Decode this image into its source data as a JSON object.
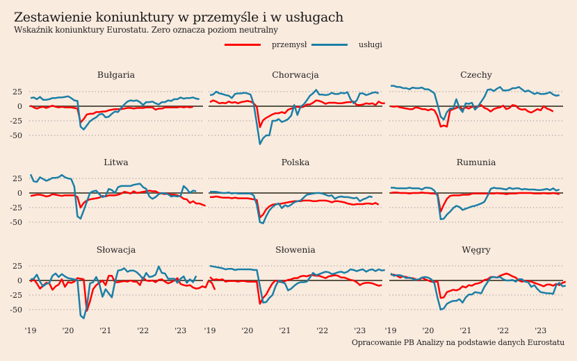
{
  "title": "Zestawienie koniunktury w przemyśle i w usługach",
  "subtitle": "Wskaźnik koniunktury Eurostatu. Zero oznacza poziom neutralny",
  "footer": "Opracowanie PB Analizy na podstawie danych Eurostatu",
  "legend": [
    {
      "label": "przemysł",
      "color": "#ff0000"
    },
    {
      "label": "usługi",
      "color": "#1a7fa6"
    }
  ],
  "colors": {
    "background": "#faebdf",
    "zero_line": "#5a5545",
    "grid": "#888888",
    "przemysl": "#ff0000",
    "uslugi": "#1a7fa6"
  },
  "chart_data": {
    "type": "line",
    "layout": "small-multiples 3x3",
    "x_start": "2019-01",
    "x_frequency": "monthly",
    "xticks": [
      "'19",
      "'20",
      "'21",
      "'22",
      "'23"
    ],
    "yticks": [
      25,
      0,
      -25,
      -50
    ],
    "ylim": [
      -55,
      30
    ],
    "grid": true,
    "legend_position": "top-center",
    "series_names": [
      "przemysł",
      "usługi"
    ],
    "panels": [
      {
        "title": "Bułgaria",
        "przemysl": [
          1,
          -2,
          -4,
          -2,
          -1,
          -3,
          -1,
          1,
          -1,
          -2,
          -1,
          -2,
          -2,
          -2,
          -3,
          -4,
          -28,
          -22,
          -14,
          -13,
          -13,
          -10,
          -10,
          -9,
          -9,
          -7,
          -6,
          -5,
          -5,
          -5,
          -4,
          -3,
          -3,
          -4,
          -3,
          -3,
          -3,
          -2,
          -2,
          -2,
          -6,
          -4,
          -4,
          -2,
          -2,
          -2,
          -2,
          -2,
          -1,
          -2,
          -1,
          -2,
          -1
        ],
        "uslugi": [
          14,
          15,
          12,
          16,
          11,
          11,
          12,
          14,
          14,
          15,
          15,
          16,
          17,
          14,
          10,
          9,
          -35,
          -40,
          -33,
          -26,
          -22,
          -19,
          -14,
          -13,
          -19,
          -18,
          -13,
          -9,
          -10,
          -3,
          3,
          8,
          10,
          9,
          10,
          7,
          2,
          7,
          7,
          8,
          5,
          3,
          7,
          7,
          10,
          9,
          12,
          12,
          15,
          13,
          14,
          14,
          15,
          13,
          12
        ]
      },
      {
        "title": "Chorwacja",
        "przemysl": [
          7,
          10,
          8,
          5,
          6,
          5,
          8,
          6,
          7,
          5,
          7,
          8,
          9,
          8,
          5,
          -1,
          -36,
          -24,
          -20,
          -17,
          -14,
          -12,
          -12,
          -10,
          -12,
          -6,
          -4,
          -2,
          -1,
          -2,
          -1,
          3,
          3,
          6,
          10,
          9,
          7,
          4,
          6,
          6,
          6,
          5,
          5,
          6,
          7,
          7,
          8,
          2,
          2,
          3,
          5,
          4,
          5,
          2,
          8,
          5,
          5
        ],
        "uslugi": [
          19,
          20,
          25,
          22,
          21,
          19,
          18,
          14,
          21,
          22,
          22,
          23,
          22,
          20,
          4,
          -30,
          -65,
          -55,
          -50,
          -50,
          -25,
          -25,
          -22,
          -27,
          -25,
          -22,
          -16,
          2,
          -15,
          -1,
          3,
          10,
          18,
          22,
          28,
          20,
          20,
          19,
          20,
          23,
          21,
          21,
          23,
          22,
          24,
          12,
          5,
          10,
          22,
          22,
          19,
          21,
          23,
          24,
          22
        ]
      },
      {
        "title": "Czechy",
        "przemysl": [
          0,
          -1,
          0,
          -2,
          -3,
          -4,
          -5,
          -5,
          -2,
          -3,
          -5,
          -5,
          -7,
          -5,
          -7,
          -17,
          -35,
          -33,
          -35,
          -7,
          -5,
          -3,
          -1,
          -5,
          -2,
          -4,
          -1,
          -2,
          -1,
          2,
          -3,
          -5,
          -9,
          -5,
          -3,
          -2,
          1,
          -5,
          -3,
          2,
          1,
          -4,
          -6,
          -5,
          -9,
          -11,
          -8,
          -5,
          -7,
          0,
          -4,
          -6,
          -9
        ],
        "uslugi": [
          35,
          35,
          33,
          33,
          31,
          31,
          29,
          32,
          31,
          31,
          32,
          29,
          29,
          26,
          22,
          3,
          -18,
          -23,
          -10,
          -4,
          -4,
          12,
          -3,
          -10,
          5,
          4,
          6,
          -6,
          0,
          8,
          16,
          28,
          29,
          26,
          30,
          33,
          27,
          27,
          28,
          31,
          31,
          33,
          29,
          25,
          27,
          24,
          21,
          23,
          21,
          21,
          22,
          24,
          20,
          18,
          19
        ]
      },
      {
        "title": "Litwa",
        "przemysl": [
          -5,
          -4,
          -3,
          -3,
          -4,
          -6,
          -5,
          -2,
          -3,
          -4,
          -5,
          -4,
          -4,
          -4,
          -4,
          -7,
          -25,
          -17,
          -13,
          -11,
          -10,
          -9,
          -8,
          -5,
          -6,
          -4,
          -4,
          -4,
          -3,
          -1,
          2,
          1,
          -1,
          3,
          0,
          1,
          2,
          3,
          4,
          3,
          3,
          0,
          -1,
          -2,
          -1,
          -3,
          -3,
          -4,
          -6,
          -10,
          -11,
          -17,
          -14,
          -18,
          -18,
          -20,
          -22
        ],
        "uslugi": [
          32,
          20,
          19,
          27,
          24,
          21,
          23,
          26,
          26,
          27,
          31,
          27,
          25,
          24,
          11,
          -40,
          -44,
          -30,
          -15,
          0,
          3,
          4,
          -2,
          -7,
          -5,
          7,
          5,
          0,
          10,
          12,
          12,
          12,
          12,
          14,
          15,
          16,
          10,
          7,
          -6,
          -10,
          -7,
          -2,
          0,
          -1,
          -2,
          -6,
          -5,
          -6,
          -5,
          12,
          7,
          0,
          4,
          3
        ]
      },
      {
        "title": "Polska",
        "przemysl": [
          -7,
          -7,
          -6,
          -7,
          -8,
          -8,
          -8,
          -9,
          -8,
          -9,
          -9,
          -9,
          -9,
          -10,
          -11,
          -12,
          -42,
          -37,
          -28,
          -23,
          -20,
          -19,
          -19,
          -18,
          -17,
          -16,
          -15,
          -14,
          -14,
          -14,
          -13,
          -13,
          -13,
          -14,
          -14,
          -13,
          -13,
          -13,
          -14,
          -16,
          -14,
          -14,
          -15,
          -16,
          -18,
          -19,
          -20,
          -19,
          -19,
          -19,
          -18,
          -18,
          -19,
          -17,
          -20
        ],
        "uslugi": [
          2,
          2,
          2,
          1,
          0,
          0,
          1,
          -1,
          0,
          -1,
          -1,
          -1,
          -1,
          -1,
          -4,
          -20,
          -50,
          -52,
          -40,
          -30,
          -24,
          -20,
          -18,
          -26,
          -21,
          -23,
          -20,
          -16,
          -14,
          -13,
          -8,
          -3,
          -2,
          -1,
          0,
          0,
          -1,
          -3,
          -5,
          -4,
          -10,
          -7,
          -6,
          -7,
          -7,
          -8,
          -9,
          -8,
          -14,
          -11,
          -9,
          -6,
          -7
        ]
      },
      {
        "title": "Rumunia",
        "przemysl": [
          0,
          1,
          1,
          0,
          0,
          0,
          -1,
          0,
          0,
          0,
          1,
          0,
          0,
          -1,
          -1,
          -2,
          -32,
          -20,
          -10,
          -5,
          -4,
          -4,
          -4,
          -3,
          -3,
          -3,
          -1,
          -1,
          -1,
          -1,
          -1,
          -1,
          -1,
          -1,
          0,
          -1,
          -1,
          -2,
          -1,
          -1,
          -1,
          0,
          0,
          0,
          0,
          0,
          -1,
          -1,
          -1,
          0,
          -1,
          -1,
          0,
          -1,
          -2
        ],
        "uslugi": [
          9,
          9,
          8,
          8,
          8,
          8,
          9,
          8,
          8,
          8,
          6,
          9,
          9,
          8,
          4,
          -5,
          -45,
          -44,
          -37,
          -32,
          -26,
          -22,
          -24,
          -29,
          -27,
          -25,
          -23,
          -22,
          -20,
          -18,
          -15,
          -5,
          7,
          9,
          8,
          8,
          7,
          6,
          9,
          7,
          8,
          8,
          6,
          7,
          6,
          6,
          6,
          5,
          5,
          6,
          7,
          5,
          8,
          4,
          6
        ]
      },
      {
        "title": "Słowacja",
        "przemysl": [
          -2,
          2,
          -5,
          -14,
          -9,
          -4,
          -5,
          -16,
          -10,
          -7,
          2,
          -11,
          -3,
          -4,
          -2,
          4,
          3,
          2,
          -52,
          -36,
          -15,
          -8,
          -4,
          0,
          -8,
          8,
          8,
          -3,
          -3,
          -2,
          -1,
          -2,
          0,
          -2,
          -2,
          -8,
          5,
          0,
          -1,
          0,
          -3,
          1,
          2,
          -2,
          -5,
          -3,
          0,
          4,
          -6,
          -8,
          -9,
          -8,
          -12,
          -14,
          -13,
          -10,
          -12,
          0,
          -4,
          -16
        ],
        "uslugi": [
          2,
          3,
          10,
          -2,
          -10,
          -6,
          -4,
          8,
          12,
          6,
          11,
          7,
          4,
          3,
          2,
          0,
          -60,
          -65,
          -45,
          -5,
          -3,
          6,
          -6,
          -28,
          -15,
          -22,
          -29,
          -3,
          17,
          18,
          21,
          15,
          17,
          17,
          14,
          9,
          2,
          13,
          6,
          7,
          10,
          24,
          13,
          12,
          3,
          3,
          3,
          -4,
          3,
          7,
          -4,
          2,
          -3,
          8
        ]
      },
      {
        "title": "Słowenia",
        "przemysl": [
          6,
          1,
          2,
          1,
          2,
          -2,
          -1,
          -1,
          -1,
          -2,
          -1,
          -1,
          -2,
          -2,
          -2,
          -2,
          -40,
          -30,
          -24,
          -14,
          -5,
          0,
          -2,
          -3,
          -1,
          1,
          2,
          4,
          4,
          7,
          8,
          7,
          9,
          9,
          8,
          8,
          6,
          4,
          7,
          8,
          9,
          8,
          5,
          5,
          3,
          1,
          0,
          -3,
          -8,
          -5,
          -4,
          -4,
          -5,
          -7,
          -9,
          -8
        ],
        "uslugi": [
          25,
          24,
          23,
          22,
          21,
          19,
          20,
          20,
          18,
          19,
          19,
          19,
          19,
          19,
          18,
          18,
          -10,
          -38,
          -37,
          -30,
          -25,
          -10,
          0,
          -3,
          -5,
          -17,
          -14,
          -9,
          -5,
          -3,
          -3,
          -2,
          5,
          13,
          9,
          11,
          13,
          15,
          14,
          11,
          12,
          14,
          15,
          13,
          15,
          19,
          18,
          16,
          18,
          19,
          15,
          18,
          19,
          16,
          19,
          17,
          18
        ]
      },
      {
        "title": "Węgry",
        "przemysl": [
          10,
          10,
          8,
          5,
          7,
          6,
          4,
          4,
          2,
          0,
          5,
          2,
          0,
          -2,
          -3,
          -1,
          -30,
          -29,
          -20,
          -18,
          -16,
          -17,
          -15,
          -10,
          -12,
          -8,
          -9,
          -6,
          -5,
          -3,
          1,
          2,
          6,
          6,
          5,
          8,
          10,
          12,
          10,
          7,
          5,
          0,
          -2,
          -1,
          -1,
          -2,
          -4,
          -6,
          -8,
          -10,
          -7,
          -7,
          -9,
          -6,
          -8,
          -4,
          -2
        ],
        "uslugi": [
          12,
          8,
          9,
          9,
          7,
          4,
          5,
          3,
          1,
          2,
          5,
          6,
          5,
          2,
          -5,
          -30,
          -50,
          -48,
          -40,
          -37,
          -35,
          -35,
          -32,
          -38,
          -29,
          -24,
          -24,
          -20,
          -21,
          -22,
          -11,
          -3,
          5,
          6,
          5,
          6,
          2,
          0,
          0,
          1,
          -2,
          2,
          2,
          -2,
          -3,
          -11,
          -8,
          -15,
          -20,
          -21,
          -22,
          -22,
          -23,
          -8,
          -4,
          -10,
          -9
        ]
      }
    ]
  }
}
